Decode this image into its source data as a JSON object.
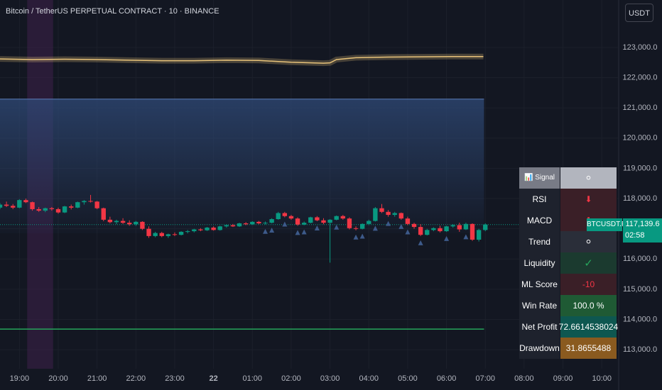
{
  "chart_data": {
    "type": "candlestick",
    "title": "Bitcoin / TetherUS PERPETUAL CONTRACT · 10 · BINANCE",
    "currency": "USDT",
    "up_color": "#089981",
    "down_color": "#f23645",
    "xlim": [
      0,
      95.5
    ],
    "xticks": [
      {
        "value": 3,
        "label": "19:00"
      },
      {
        "value": 9,
        "label": "20:00"
      },
      {
        "value": 15,
        "label": "21:00"
      },
      {
        "value": 21,
        "label": "22:00"
      },
      {
        "value": 27,
        "label": "23:00"
      },
      {
        "value": 33,
        "label": "22"
      },
      {
        "value": 39,
        "label": "01:00"
      },
      {
        "value": 45,
        "label": "02:00"
      },
      {
        "value": 51,
        "label": "03:00"
      },
      {
        "value": 57,
        "label": "04:00"
      },
      {
        "value": 63,
        "label": "05:00"
      },
      {
        "value": 69,
        "label": "06:00"
      },
      {
        "value": 75,
        "label": "07:00"
      },
      {
        "value": 81,
        "label": "08:00"
      },
      {
        "value": 87,
        "label": "09:00"
      },
      {
        "value": 93,
        "label": "10:00"
      }
    ],
    "ylim": [
      112370,
      124570
    ],
    "yticks": [
      {
        "value": 113000,
        "label": "113,000.0"
      },
      {
        "value": 114000,
        "label": "114,000.0"
      },
      {
        "value": 115000,
        "label": "115,000.0"
      },
      {
        "value": 116000,
        "label": "116,000.0"
      },
      {
        "value": 117000,
        "label": "117,000.0"
      },
      {
        "value": 118000,
        "label": "118,000.0"
      },
      {
        "value": 119000,
        "label": "119,000.0"
      },
      {
        "value": 120000,
        "label": "120,000.0"
      },
      {
        "value": 121000,
        "label": "121,000.0"
      },
      {
        "value": 122000,
        "label": "122,000.0"
      },
      {
        "value": 123000,
        "label": "123,000.0"
      }
    ],
    "ohlc": [
      [
        117700,
        117850,
        117650,
        117800
      ],
      [
        117800,
        117900,
        117720,
        117760
      ],
      [
        117760,
        117820,
        117650,
        117700
      ],
      [
        117700,
        117980,
        117680,
        117950
      ],
      [
        117950,
        118000,
        117850,
        117880
      ],
      [
        117880,
        117900,
        117600,
        117650
      ],
      [
        117650,
        117720,
        117560,
        117600
      ],
      [
        117600,
        117700,
        117550,
        117680
      ],
      [
        117680,
        117720,
        117600,
        117650
      ],
      [
        117650,
        117700,
        117500,
        117540
      ],
      [
        117540,
        117760,
        117520,
        117740
      ],
      [
        117740,
        117800,
        117640,
        117700
      ],
      [
        117700,
        117900,
        117680,
        117880
      ],
      [
        117880,
        117950,
        117800,
        117920
      ],
      [
        117920,
        118120,
        117870,
        117900
      ],
      [
        117900,
        117920,
        117650,
        117680
      ],
      [
        117680,
        117700,
        117250,
        117300
      ],
      [
        117300,
        117400,
        117180,
        117220
      ],
      [
        117220,
        117300,
        117150,
        117260
      ],
      [
        117260,
        117350,
        117160,
        117200
      ],
      [
        117200,
        117280,
        117100,
        117150
      ],
      [
        117150,
        117260,
        117100,
        117230
      ],
      [
        117230,
        117250,
        116960,
        117000
      ],
      [
        117000,
        117080,
        116700,
        116760
      ],
      [
        116760,
        116900,
        116720,
        116860
      ],
      [
        116860,
        116900,
        116720,
        116760
      ],
      [
        116760,
        116840,
        116700,
        116820
      ],
      [
        116820,
        116880,
        116760,
        116800
      ],
      [
        116800,
        116920,
        116780,
        116900
      ],
      [
        116900,
        116960,
        116850,
        116920
      ],
      [
        116920,
        117000,
        116880,
        116980
      ],
      [
        116980,
        117020,
        116920,
        116950
      ],
      [
        116950,
        117060,
        116930,
        117040
      ],
      [
        117040,
        117080,
        116940,
        116960
      ],
      [
        116960,
        117100,
        116940,
        117080
      ],
      [
        117080,
        117150,
        117040,
        117120
      ],
      [
        117120,
        117160,
        117060,
        117080
      ],
      [
        117080,
        117200,
        117060,
        117180
      ],
      [
        117180,
        117220,
        117120,
        117150
      ],
      [
        117150,
        117250,
        117130,
        117230
      ],
      [
        117230,
        117260,
        117150,
        117180
      ],
      [
        117180,
        117240,
        117140,
        117200
      ],
      [
        117200,
        117350,
        117180,
        117320
      ],
      [
        117320,
        117560,
        117300,
        117520
      ],
      [
        117520,
        117560,
        117380,
        117420
      ],
      [
        117420,
        117460,
        117300,
        117340
      ],
      [
        117340,
        117380,
        117100,
        117140
      ],
      [
        117140,
        117240,
        117120,
        117200
      ],
      [
        117200,
        117400,
        117180,
        117380
      ],
      [
        117380,
        117420,
        117250,
        117280
      ],
      [
        117280,
        117350,
        117150,
        117200
      ],
      [
        117200,
        117320,
        115880,
        117300
      ],
      [
        117300,
        117440,
        117280,
        117420
      ],
      [
        117420,
        117460,
        117300,
        117340
      ],
      [
        117340,
        117380,
        116980,
        117020
      ],
      [
        117020,
        117080,
        116950,
        117000
      ],
      [
        117000,
        117180,
        116980,
        117160
      ],
      [
        117160,
        117300,
        117120,
        117260
      ],
      [
        117260,
        117720,
        117240,
        117680
      ],
      [
        117680,
        117820,
        117520,
        117560
      ],
      [
        117560,
        117620,
        117400,
        117460
      ],
      [
        117460,
        117560,
        117400,
        117520
      ],
      [
        117520,
        117540,
        117300,
        117340
      ],
      [
        117340,
        117400,
        117120,
        117160
      ],
      [
        117160,
        117200,
        117000,
        117060
      ],
      [
        117060,
        117150,
        116760,
        116800
      ],
      [
        116800,
        117000,
        116780,
        116960
      ],
      [
        116960,
        117050,
        116920,
        117020
      ],
      [
        117020,
        117100,
        116880,
        116920
      ],
      [
        116920,
        117100,
        116900,
        117080
      ],
      [
        117080,
        117150,
        117040,
        117120
      ],
      [
        117120,
        117200,
        116900,
        116980
      ],
      [
        116980,
        117200,
        116960,
        117160
      ],
      [
        117160,
        117180,
        116600,
        116640
      ],
      [
        116640,
        117000,
        116580,
        116960
      ],
      [
        116960,
        117180,
        116920,
        117139.6
      ]
    ],
    "markers": [
      41,
      42,
      44,
      46,
      47,
      49,
      52,
      55,
      56,
      58,
      60,
      62,
      63,
      65,
      69,
      72
    ],
    "vwap": {
      "color": "#e8c37a",
      "x": [
        0,
        5,
        10,
        15,
        20,
        25,
        30,
        35,
        40,
        45,
        50,
        51,
        52,
        55,
        60,
        65,
        70,
        74.7
      ],
      "values": [
        122620,
        122600,
        122610,
        122600,
        122580,
        122560,
        122560,
        122580,
        122570,
        122510,
        122480,
        122490,
        122600,
        122660,
        122680,
        122690,
        122700,
        122700
      ]
    },
    "box": {
      "color": "#2f4a78",
      "xlim": [
        0,
        74.8
      ],
      "ylim": [
        116850,
        121290
      ]
    },
    "hline": {
      "color": "#26a65b",
      "value": 113680,
      "xlim": [
        0,
        74.8
      ]
    },
    "band": {
      "color": "#3b2047",
      "xlim": [
        4.2,
        8.2
      ]
    },
    "last_price": {
      "value": 117139.6,
      "label": "117,139.6"
    },
    "symbol_label": "BTCUSDT.P",
    "countdown": "02:58"
  },
  "table": {
    "rows": [
      [
        "📊 Signal",
        "⚪"
      ],
      [
        "RSI",
        "⬇"
      ],
      [
        "MACD",
        "⬇"
      ],
      [
        "Trend",
        "⚪"
      ],
      [
        "Liquidity",
        "✓"
      ],
      [
        "ML Score",
        "-10"
      ],
      [
        "Win Rate",
        "100.0 %"
      ],
      [
        "Net Profit",
        "72.6614538024"
      ],
      [
        "Drawdown",
        "31.8655488"
      ]
    ]
  }
}
